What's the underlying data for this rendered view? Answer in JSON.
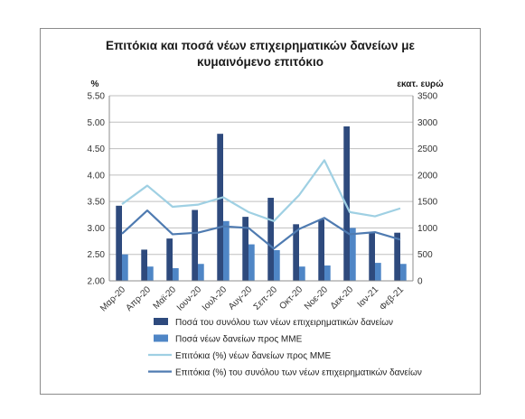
{
  "chart_data": {
    "type": "bar",
    "title_line1": "Επιτόκια και ποσά νέων επιχειρηματικών δανείων με",
    "title_line2": "κυμαινόμενο επιτόκιο",
    "left_unit": "%",
    "right_unit": "εκατ. ευρώ",
    "left_axis": {
      "min": 2.0,
      "max": 5.5,
      "ticks": [
        "2.00",
        "2.50",
        "3.00",
        "3.50",
        "4.00",
        "4.50",
        "5.00",
        "5.50"
      ]
    },
    "right_axis": {
      "min": 0,
      "max": 3500,
      "ticks": [
        "0",
        "500",
        "1000",
        "1500",
        "2000",
        "2500",
        "3000",
        "3500"
      ]
    },
    "categories": [
      "Μαρ-20",
      "Απρ-20",
      "Μαϊ-20",
      "Ιουν-20",
      "Ιουλ-20",
      "Αυγ-20",
      "Σεπ-20",
      "Οκτ-20",
      "Νοε-20",
      "Δεκ-20",
      "Ιαν-21",
      "Φεβ-21"
    ],
    "series": [
      {
        "name": "Ποσά του συνόλου των νέων επιχειρηματικών δανείων",
        "kind": "bar",
        "axis": "right",
        "color": "#2e4a7d",
        "values": [
          1420,
          590,
          800,
          1340,
          2780,
          1210,
          1570,
          1070,
          1160,
          2920,
          910,
          910
        ]
      },
      {
        "name": "Ποσά νέων δανείων προς ΜΜΕ",
        "kind": "bar",
        "axis": "right",
        "color": "#4f86c6",
        "values": [
          500,
          270,
          240,
          320,
          1130,
          690,
          580,
          270,
          290,
          1000,
          340,
          320
        ]
      },
      {
        "name": "Επιτόκια (%) νέων δανείων προς ΜΜΕ",
        "kind": "line",
        "axis": "left",
        "color": "#9fd0e3",
        "values": [
          3.45,
          3.8,
          3.4,
          3.44,
          3.58,
          3.3,
          3.13,
          3.62,
          4.28,
          3.3,
          3.22,
          3.37
        ]
      },
      {
        "name": "Επιτόκια (%) του συνόλου των νέων επιχειρηματικών δανείων",
        "kind": "line",
        "axis": "left",
        "color": "#4f7bb1",
        "values": [
          2.89,
          3.33,
          2.88,
          2.91,
          3.03,
          3.0,
          2.61,
          2.98,
          3.19,
          2.88,
          2.92,
          2.78
        ]
      }
    ]
  }
}
